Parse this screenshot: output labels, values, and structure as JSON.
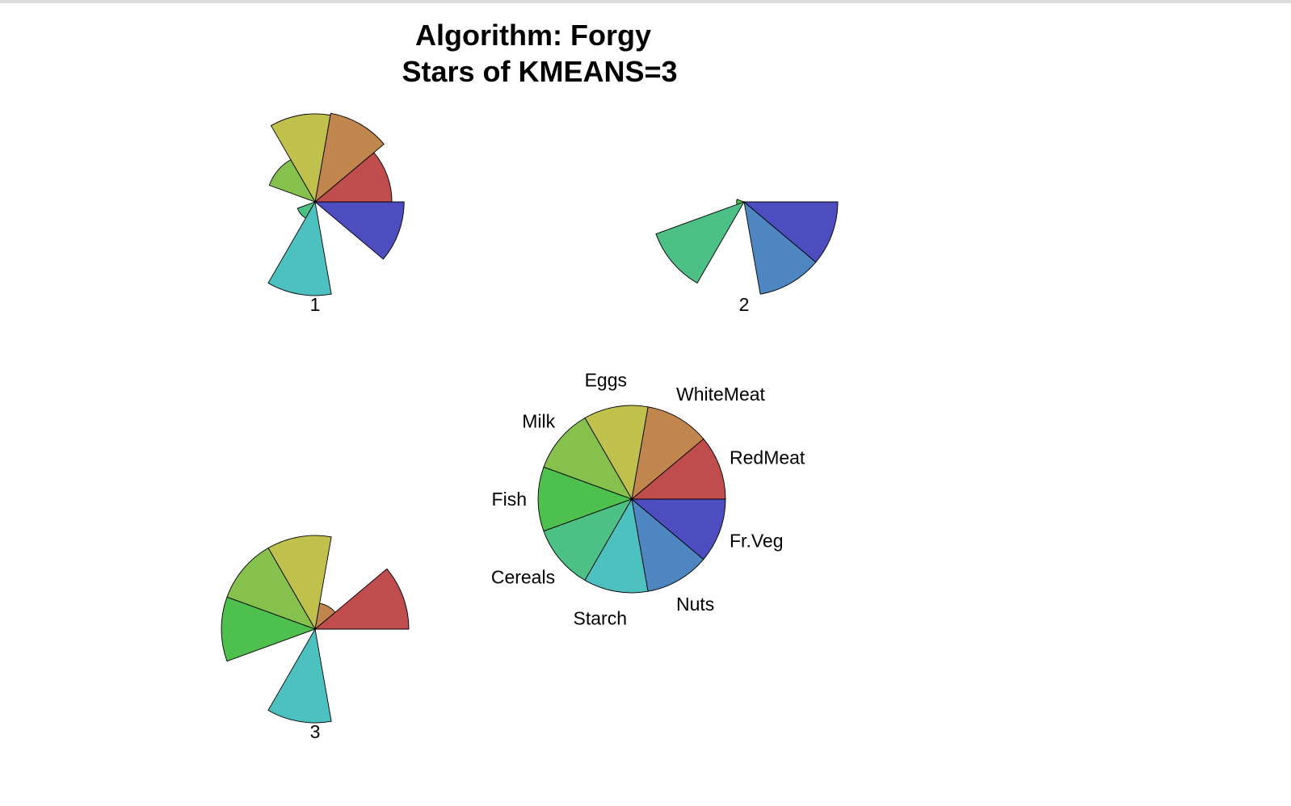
{
  "chart_data": {
    "type": "star",
    "title": [
      "Algorithm: Forgy",
      "Stars of KMEANS=3"
    ],
    "variables": [
      "RedMeat",
      "WhiteMeat",
      "Eggs",
      "Milk",
      "Fish",
      "Cereals",
      "Starch",
      "Nuts",
      "Fr.Veg"
    ],
    "colors": [
      "#C04D4D",
      "#C0864D",
      "#C0C04D",
      "#86C04D",
      "#4DC04D",
      "#4DC086",
      "#4DC0C0",
      "#4D86C0",
      "#4D4DC0"
    ],
    "stars": [
      {
        "label": "1",
        "values": [
          0.82,
          0.96,
          0.94,
          0.52,
          0.0,
          0.2,
          1.0,
          0.0,
          0.95
        ]
      },
      {
        "label": "2",
        "values": [
          0.0,
          0.0,
          0.0,
          0.0,
          0.0,
          1.0,
          0.0,
          1.0,
          1.0
        ]
      },
      {
        "label": "3",
        "values": [
          1.0,
          0.28,
          1.0,
          1.0,
          1.0,
          0.0,
          1.0,
          0.0,
          0.0
        ]
      }
    ],
    "key": {
      "labels": [
        "RedMeat",
        "WhiteMeat",
        "Eggs",
        "Milk",
        "Fish",
        "Cereals",
        "Starch",
        "Nuts",
        "Fr.Veg"
      ]
    }
  }
}
